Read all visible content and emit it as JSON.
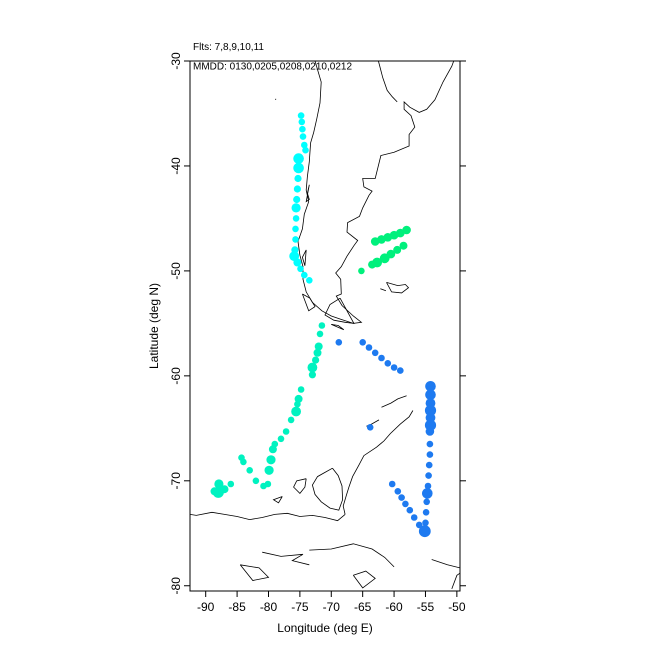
{
  "header": {
    "flights_label": "Flts: 7,8,9,10,11",
    "dates_label": "MMDD: 0130,0205,0208,0210,0212"
  },
  "chart_data": {
    "type": "scatter",
    "title": "",
    "xlabel": "Longitude (deg E)",
    "ylabel": "Latitude (deg N)",
    "xlim": [
      -92.5,
      -49.5
    ],
    "ylim": [
      -80.5,
      -30
    ],
    "x_ticks": [
      -90,
      -85,
      -80,
      -75,
      -70,
      -65,
      -60,
      -55,
      -50
    ],
    "y_ticks": [
      -30,
      -40,
      -50,
      -60,
      -70,
      -80
    ],
    "colors": {
      "cyan": "#00ffff",
      "aqua_green": "#00f2c0",
      "spring_green": "#00f07c",
      "blue": "#1e7af0",
      "coast": "#000000"
    },
    "series": [
      {
        "color": "cyan",
        "points": [
          [
            -74.8,
            -35.2,
            1.0
          ],
          [
            -74.7,
            -35.8,
            1.0
          ],
          [
            -74.6,
            -36.5,
            1.0
          ],
          [
            -74.5,
            -37.2,
            1.0
          ],
          [
            -74.3,
            -38.0,
            1.0
          ],
          [
            -74.1,
            -38.5,
            1.0
          ],
          [
            -75.2,
            -39.3,
            1.6
          ],
          [
            -75.2,
            -40.2,
            1.6
          ],
          [
            -75.3,
            -41.2,
            1.1
          ],
          [
            -75.4,
            -42.2,
            1.1
          ],
          [
            -75.5,
            -43.2,
            1.1
          ],
          [
            -75.6,
            -44.0,
            1.4
          ],
          [
            -75.6,
            -45.0,
            1.0
          ],
          [
            -75.7,
            -46.0,
            1.0
          ],
          [
            -75.7,
            -47.0,
            1.0
          ],
          [
            -75.8,
            -48.0,
            1.1
          ],
          [
            -75.9,
            -48.6,
            1.5
          ],
          [
            -75.4,
            -49.2,
            1.2
          ],
          [
            -74.9,
            -49.8,
            1.0
          ],
          [
            -74.3,
            -50.4,
            1.0
          ],
          [
            -73.5,
            -50.9,
            1.0
          ]
        ]
      },
      {
        "color": "aqua_green",
        "points": [
          [
            -71.5,
            -55.2,
            1.0
          ],
          [
            -71.8,
            -56.0,
            1.0
          ],
          [
            -72.0,
            -57.2,
            1.2
          ],
          [
            -72.2,
            -57.8,
            1.2
          ],
          [
            -72.5,
            -58.5,
            1.1
          ],
          [
            -73.0,
            -59.2,
            1.5
          ],
          [
            -73.0,
            -59.9,
            1.1
          ],
          [
            -74.8,
            -61.3,
            1.0
          ],
          [
            -75.2,
            -62.2,
            1.2
          ],
          [
            -75.4,
            -62.7,
            1.0
          ],
          [
            -75.6,
            -63.4,
            1.5
          ],
          [
            -76.4,
            -64.2,
            1.0
          ],
          [
            -77.2,
            -65.3,
            1.0
          ],
          [
            -78.0,
            -66.0,
            1.0
          ],
          [
            -79.0,
            -66.5,
            1.0
          ],
          [
            -79.3,
            -67.0,
            1.2
          ],
          [
            -79.6,
            -68.0,
            1.4
          ],
          [
            -79.9,
            -69.0,
            1.4
          ],
          [
            -80.1,
            -70.3,
            1.0
          ],
          [
            -80.8,
            -70.5,
            1.0
          ],
          [
            -82.0,
            -70.0,
            1.0
          ],
          [
            -83.0,
            -69.0,
            1.0
          ],
          [
            -84.0,
            -68.2,
            1.0
          ],
          [
            -84.3,
            -67.8,
            1.0
          ],
          [
            -86.0,
            -70.3,
            1.0
          ],
          [
            -87.0,
            -70.8,
            1.2
          ],
          [
            -87.9,
            -70.3,
            1.4
          ],
          [
            -88.0,
            -71.1,
            1.7
          ],
          [
            -88.6,
            -71.0,
            1.2
          ]
        ]
      },
      {
        "color": "spring_green",
        "points": [
          [
            -65.2,
            -50.0,
            1.0
          ],
          [
            -63.5,
            -49.4,
            1.2
          ],
          [
            -62.7,
            -49.2,
            1.5
          ],
          [
            -61.5,
            -48.8,
            1.5
          ],
          [
            -60.5,
            -48.4,
            1.3
          ],
          [
            -59.5,
            -48.0,
            1.2
          ],
          [
            -58.5,
            -47.6,
            1.2
          ],
          [
            -63.0,
            -47.2,
            1.3
          ],
          [
            -62.0,
            -47.0,
            1.3
          ],
          [
            -61.0,
            -46.8,
            1.3
          ],
          [
            -60.0,
            -46.6,
            1.3
          ],
          [
            -59.0,
            -46.4,
            1.3
          ],
          [
            -58.0,
            -46.1,
            1.3
          ]
        ]
      },
      {
        "color": "blue",
        "points": [
          [
            -68.8,
            -56.8,
            1.0
          ],
          [
            -65.0,
            -56.8,
            1.0
          ],
          [
            -64.0,
            -57.3,
            1.0
          ],
          [
            -63.0,
            -57.8,
            1.0
          ],
          [
            -62.0,
            -58.3,
            1.0
          ],
          [
            -61.0,
            -58.8,
            1.0
          ],
          [
            -60.0,
            -59.2,
            1.0
          ],
          [
            -59.0,
            -59.5,
            1.0
          ],
          [
            -63.8,
            -64.9,
            1.0
          ],
          [
            -54.2,
            -61.0,
            1.6
          ],
          [
            -54.2,
            -61.8,
            1.6
          ],
          [
            -54.2,
            -62.6,
            1.5
          ],
          [
            -54.2,
            -63.3,
            1.7
          ],
          [
            -54.2,
            -64.0,
            1.5
          ],
          [
            -54.2,
            -64.7,
            1.7
          ],
          [
            -54.3,
            -65.3,
            1.3
          ],
          [
            -54.3,
            -66.5,
            1.0
          ],
          [
            -54.3,
            -67.5,
            1.0
          ],
          [
            -54.4,
            -68.5,
            1.0
          ],
          [
            -54.5,
            -69.5,
            1.0
          ],
          [
            -54.6,
            -70.5,
            1.0
          ],
          [
            -54.7,
            -71.2,
            1.6
          ],
          [
            -54.8,
            -72.0,
            1.0
          ],
          [
            -54.9,
            -73.0,
            1.0
          ],
          [
            -55.0,
            -74.0,
            1.0
          ],
          [
            -55.1,
            -74.8,
            1.8
          ],
          [
            -56.0,
            -74.2,
            1.0
          ],
          [
            -56.8,
            -73.5,
            1.0
          ],
          [
            -57.5,
            -72.8,
            1.0
          ],
          [
            -58.2,
            -72.2,
            1.0
          ],
          [
            -58.8,
            -71.6,
            1.0
          ],
          [
            -59.4,
            -71.0,
            1.0
          ],
          [
            -60.3,
            -70.3,
            1.0
          ]
        ]
      }
    ],
    "coastlines": [
      [
        [
          -72.6,
          -30
        ],
        [
          -71.6,
          -32
        ],
        [
          -71.8,
          -34
        ],
        [
          -72.3,
          -35.5
        ],
        [
          -72.8,
          -36.8
        ],
        [
          -73.3,
          -37.8
        ],
        [
          -73.5,
          -39.6
        ],
        [
          -73.8,
          -41.0
        ],
        [
          -74.0,
          -42.3
        ],
        [
          -73.6,
          -43.4
        ],
        [
          -74.3,
          -44.6
        ],
        [
          -74.6,
          -46.0
        ],
        [
          -75.3,
          -47.2
        ],
        [
          -75.0,
          -48.5
        ],
        [
          -74.5,
          -49.6
        ],
        [
          -74.5,
          -50.8
        ],
        [
          -74.0,
          -52.0
        ],
        [
          -73.0,
          -53.0
        ],
        [
          -71.5,
          -53.8
        ],
        [
          -70.0,
          -54.3
        ],
        [
          -68.5,
          -54.6
        ],
        [
          -66.5,
          -55.0
        ],
        [
          -65.2,
          -54.9
        ],
        [
          -66.5,
          -54.3
        ],
        [
          -68.3,
          -53.3
        ],
        [
          -69.2,
          -52.4
        ],
        [
          -68.4,
          -52.2
        ],
        [
          -68.5,
          -50.8
        ],
        [
          -69.3,
          -50.2
        ],
        [
          -68.4,
          -49.6
        ],
        [
          -67.5,
          -48.6
        ],
        [
          -66.4,
          -47.6
        ],
        [
          -65.8,
          -47.1
        ],
        [
          -67.5,
          -46.3
        ],
        [
          -67.4,
          -45.4
        ],
        [
          -65.5,
          -44.8
        ],
        [
          -65.0,
          -44.0
        ],
        [
          -64.0,
          -42.8
        ],
        [
          -63.5,
          -42.4
        ],
        [
          -64.8,
          -42.0
        ],
        [
          -65.0,
          -41.2
        ],
        [
          -63.0,
          -41.2
        ],
        [
          -62.1,
          -39.0
        ],
        [
          -60.0,
          -38.7
        ],
        [
          -57.6,
          -38.1
        ],
        [
          -57.6,
          -37.0
        ],
        [
          -56.7,
          -36.3
        ],
        [
          -57.3,
          -35.2
        ],
        [
          -58.4,
          -34.6
        ],
        [
          -58.4,
          -33.9
        ],
        [
          -57.5,
          -34.4
        ],
        [
          -56.0,
          -34.9
        ],
        [
          -54.8,
          -34.6
        ],
        [
          -53.5,
          -33.7
        ],
        [
          -52.2,
          -32.0
        ],
        [
          -50.8,
          -30.5
        ],
        [
          -50.5,
          -30
        ]
      ],
      [
        [
          -62.5,
          -30
        ],
        [
          -61.8,
          -31.6
        ],
        [
          -61.1,
          -32.8
        ],
        [
          -60.3,
          -33.4
        ],
        [
          -59.5,
          -33.9
        ]
      ],
      [
        [
          -73.5,
          -41.8
        ],
        [
          -73.8,
          -42.6
        ],
        [
          -73.5,
          -43.2
        ],
        [
          -74.0,
          -43.4
        ],
        [
          -73.5,
          -41.8
        ]
      ],
      [
        [
          -74.0,
          -48.0
        ],
        [
          -74.6,
          -48.7
        ],
        [
          -74.2,
          -49.5
        ],
        [
          -74.0,
          -48.0
        ]
      ],
      [
        [
          -74.6,
          -52.2
        ],
        [
          -73.4,
          -52.6
        ],
        [
          -72.6,
          -53.4
        ],
        [
          -73.6,
          -53.8
        ],
        [
          -74.6,
          -52.2
        ]
      ],
      [
        [
          -68.6,
          -52.6
        ],
        [
          -70.2,
          -53.2
        ],
        [
          -71.0,
          -54.2
        ],
        [
          -69.6,
          -54.7
        ],
        [
          -67.8,
          -54.9
        ],
        [
          -66.4,
          -55.0
        ],
        [
          -68.6,
          -52.6
        ]
      ],
      [
        [
          -70.0,
          -55.1
        ],
        [
          -68.0,
          -55.6
        ],
        [
          -68.9,
          -55.2
        ],
        [
          -70.0,
          -55.1
        ]
      ],
      [
        [
          -61.2,
          -51.1
        ],
        [
          -59.4,
          -51.4
        ],
        [
          -58.2,
          -51.3
        ],
        [
          -57.7,
          -51.6
        ],
        [
          -58.8,
          -52.1
        ],
        [
          -60.4,
          -52.0
        ],
        [
          -61.2,
          -51.1
        ]
      ],
      [
        [
          -62.2,
          -51.7
        ],
        [
          -61.3,
          -51.9
        ],
        [
          -62.2,
          -51.7
        ]
      ],
      [
        [
          -78.8,
          -33.6
        ],
        [
          -78.9,
          -33.7
        ]
      ],
      [
        [
          -57.0,
          -63.3
        ],
        [
          -57.6,
          -63.9
        ],
        [
          -59.0,
          -64.6
        ],
        [
          -60.6,
          -65.5
        ],
        [
          -61.6,
          -66.2
        ],
        [
          -62.8,
          -66.8
        ],
        [
          -64.8,
          -67.6
        ],
        [
          -65.6,
          -68.5
        ],
        [
          -66.6,
          -69.6
        ],
        [
          -67.2,
          -70.6
        ],
        [
          -67.6,
          -71.4
        ],
        [
          -68.1,
          -72.4
        ],
        [
          -67.8,
          -73.2
        ]
      ],
      [
        [
          -62.4,
          -64.2
        ],
        [
          -63.6,
          -64.6
        ],
        [
          -64.4,
          -64.8
        ]
      ],
      [
        [
          -58.0,
          -61.9
        ],
        [
          -59.4,
          -62.2
        ],
        [
          -60.5,
          -62.6
        ],
        [
          -62.0,
          -63.0
        ]
      ],
      [
        [
          -67.8,
          -73.2
        ],
        [
          -69.0,
          -73.8
        ],
        [
          -71.0,
          -73.5
        ],
        [
          -73.0,
          -73.3
        ],
        [
          -75.0,
          -73.4
        ],
        [
          -77.0,
          -73.1
        ],
        [
          -79.0,
          -73.2
        ],
        [
          -81.0,
          -73.5
        ],
        [
          -83.0,
          -73.7
        ],
        [
          -85.0,
          -73.4
        ],
        [
          -87.0,
          -73.2
        ],
        [
          -89.0,
          -73.0
        ],
        [
          -91.5,
          -73.3
        ],
        [
          -92.5,
          -73.2
        ]
      ],
      [
        [
          -69.8,
          -68.8
        ],
        [
          -71.0,
          -69.2
        ],
        [
          -72.2,
          -69.6
        ],
        [
          -73.0,
          -70.4
        ],
        [
          -72.6,
          -71.3
        ],
        [
          -71.6,
          -72.0
        ],
        [
          -70.2,
          -72.6
        ],
        [
          -68.8,
          -72.8
        ],
        [
          -68.2,
          -71.8
        ],
        [
          -68.3,
          -70.5
        ],
        [
          -68.9,
          -69.5
        ],
        [
          -69.8,
          -68.8
        ]
      ],
      [
        [
          -74.0,
          -69.8
        ],
        [
          -75.5,
          -70.0
        ],
        [
          -76.0,
          -70.6
        ],
        [
          -75.0,
          -71.2
        ],
        [
          -74.2,
          -70.6
        ],
        [
          -74.0,
          -69.8
        ]
      ],
      [
        [
          -77.8,
          -71.5
        ],
        [
          -79.2,
          -71.8
        ],
        [
          -78.4,
          -72.1
        ],
        [
          -77.8,
          -71.5
        ]
      ],
      [
        [
          -73.5,
          -76.6
        ],
        [
          -70.0,
          -76.5
        ],
        [
          -66.5,
          -76.0
        ],
        [
          -63.5,
          -76.5
        ],
        [
          -61.5,
          -77.3
        ],
        [
          -60.0,
          -78.2
        ]
      ],
      [
        [
          -81.0,
          -76.8
        ],
        [
          -78.0,
          -77.2
        ],
        [
          -74.5,
          -77.0
        ],
        [
          -76.2,
          -77.6
        ],
        [
          -73.5,
          -78.0
        ]
      ],
      [
        [
          -84.5,
          -78.0
        ],
        [
          -81.5,
          -78.3
        ],
        [
          -80.0,
          -79.2
        ],
        [
          -82.5,
          -79.5
        ],
        [
          -84.5,
          -78.0
        ]
      ],
      [
        [
          -66.5,
          -79.0
        ],
        [
          -65.0,
          -80.2
        ],
        [
          -63.0,
          -79.3
        ],
        [
          -64.5,
          -78.6
        ],
        [
          -66.5,
          -79.0
        ]
      ],
      [
        [
          -54.0,
          -77.5
        ],
        [
          -51.5,
          -78.0
        ],
        [
          -49.5,
          -78.3
        ]
      ],
      [
        [
          -50.8,
          -80.3
        ],
        [
          -50.0,
          -79.0
        ],
        [
          -49.5,
          -78.8
        ]
      ]
    ]
  }
}
